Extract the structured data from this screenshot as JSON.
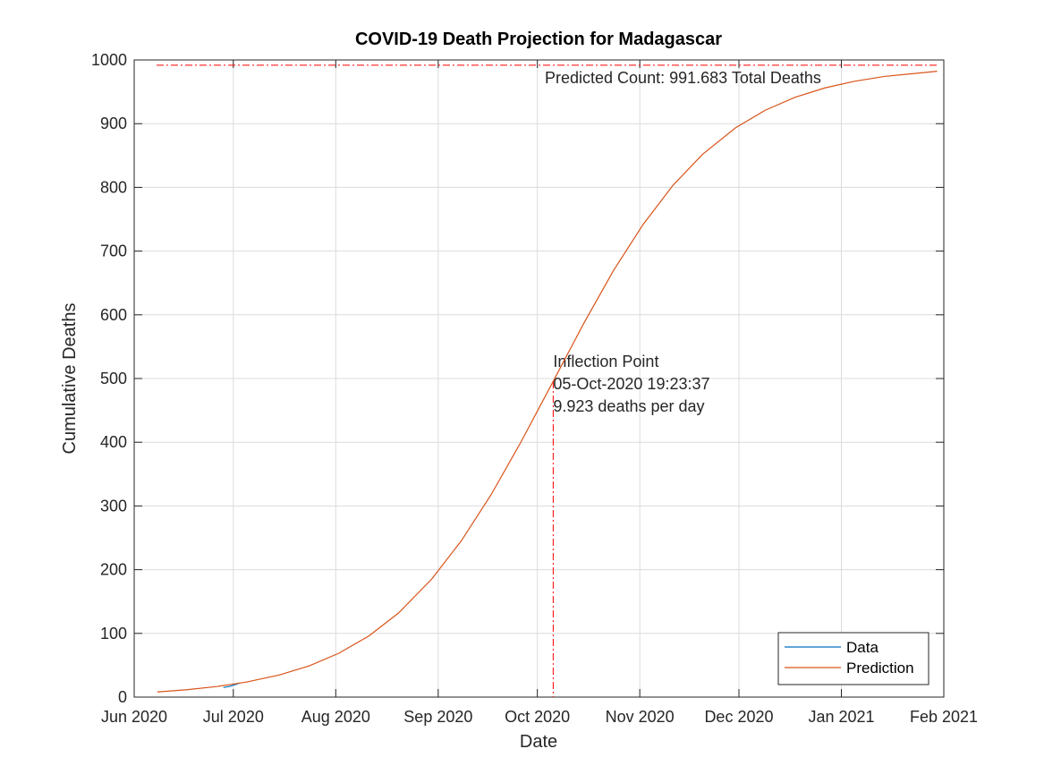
{
  "chart_data": {
    "type": "line",
    "title": "COVID-19 Death Projection for Madagascar",
    "xlabel": "Date",
    "ylabel": "Cumulative Deaths",
    "xlim": [
      0,
      245
    ],
    "xticks": [
      {
        "value": 0,
        "label": "Jun 2020"
      },
      {
        "value": 30,
        "label": "Jul 2020"
      },
      {
        "value": 61,
        "label": "Aug 2020"
      },
      {
        "value": 92,
        "label": "Sep 2020"
      },
      {
        "value": 122,
        "label": "Oct 2020"
      },
      {
        "value": 153,
        "label": "Nov 2020"
      },
      {
        "value": 183,
        "label": "Dec 2020"
      },
      {
        "value": 214,
        "label": "Jan 2021"
      },
      {
        "value": 245,
        "label": "Feb 2021"
      }
    ],
    "ylim": [
      0,
      1000
    ],
    "yticks": [
      0,
      100,
      200,
      300,
      400,
      500,
      600,
      700,
      800,
      900,
      1000
    ],
    "grid": true,
    "legend": "lower right",
    "series": [
      {
        "name": "Data",
        "color": "#0072bd",
        "x": [
          27,
          29,
          32
        ],
        "values": [
          15,
          17,
          22
        ]
      },
      {
        "name": "Prediction",
        "color": "#d95319",
        "x": [
          7,
          16,
          25,
          34,
          44,
          53,
          62,
          71,
          80,
          90,
          99,
          108,
          117,
          126,
          136,
          145,
          154,
          163,
          172,
          182,
          191,
          200,
          209,
          218,
          227,
          243
        ],
        "values": [
          8.1,
          11.6,
          16.6,
          23.6,
          34.8,
          49.1,
          69.0,
          95.9,
          132.0,
          185.0,
          245.4,
          317.6,
          399.9,
          487.8,
          586.1,
          669.2,
          741.8,
          803.0,
          851.9,
          893.6,
          921.2,
          941.4,
          956.1,
          966.6,
          974.1,
          982.3
        ]
      }
    ],
    "asymptote": 991.683,
    "asymptote_label": "Predicted Count: 991.683 Total Deaths",
    "inflection": {
      "x": 126.8,
      "y": 495.8
    },
    "inflection_label": [
      "Inflection Point",
      "05-Oct-2020 19:23:37",
      "9.923 deaths per day"
    ],
    "reference_color": "#ff0000"
  }
}
